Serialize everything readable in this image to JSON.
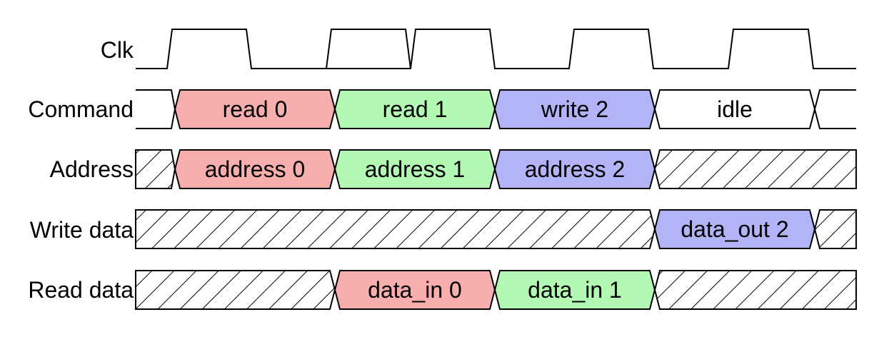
{
  "colors": {
    "read0": "#f9aeae",
    "read1": "#b3f9b3",
    "write2": "#b3b3f7",
    "idle": "#ffffff"
  },
  "signals": [
    {
      "id": "clk",
      "label": "Clk"
    },
    {
      "id": "command",
      "label": "Command"
    },
    {
      "id": "address",
      "label": "Address"
    },
    {
      "id": "write_data",
      "label": "Write data"
    },
    {
      "id": "read_data",
      "label": "Read data"
    }
  ],
  "command_segments": [
    {
      "text": "read 0",
      "color": "read0"
    },
    {
      "text": "read 1",
      "color": "read1"
    },
    {
      "text": "write 2",
      "color": "write2"
    },
    {
      "text": "idle",
      "color": "idle"
    }
  ],
  "address_segments": [
    {
      "text": "address 0",
      "color": "read0"
    },
    {
      "text": "address 1",
      "color": "read1"
    },
    {
      "text": "address 2",
      "color": "write2"
    }
  ],
  "write_data_segments": [
    {
      "text": "data_out 2",
      "color": "write2"
    }
  ],
  "read_data_segments": [
    {
      "text": "data_in 0",
      "color": "read0"
    },
    {
      "text": "data_in 1",
      "color": "read1"
    }
  ]
}
